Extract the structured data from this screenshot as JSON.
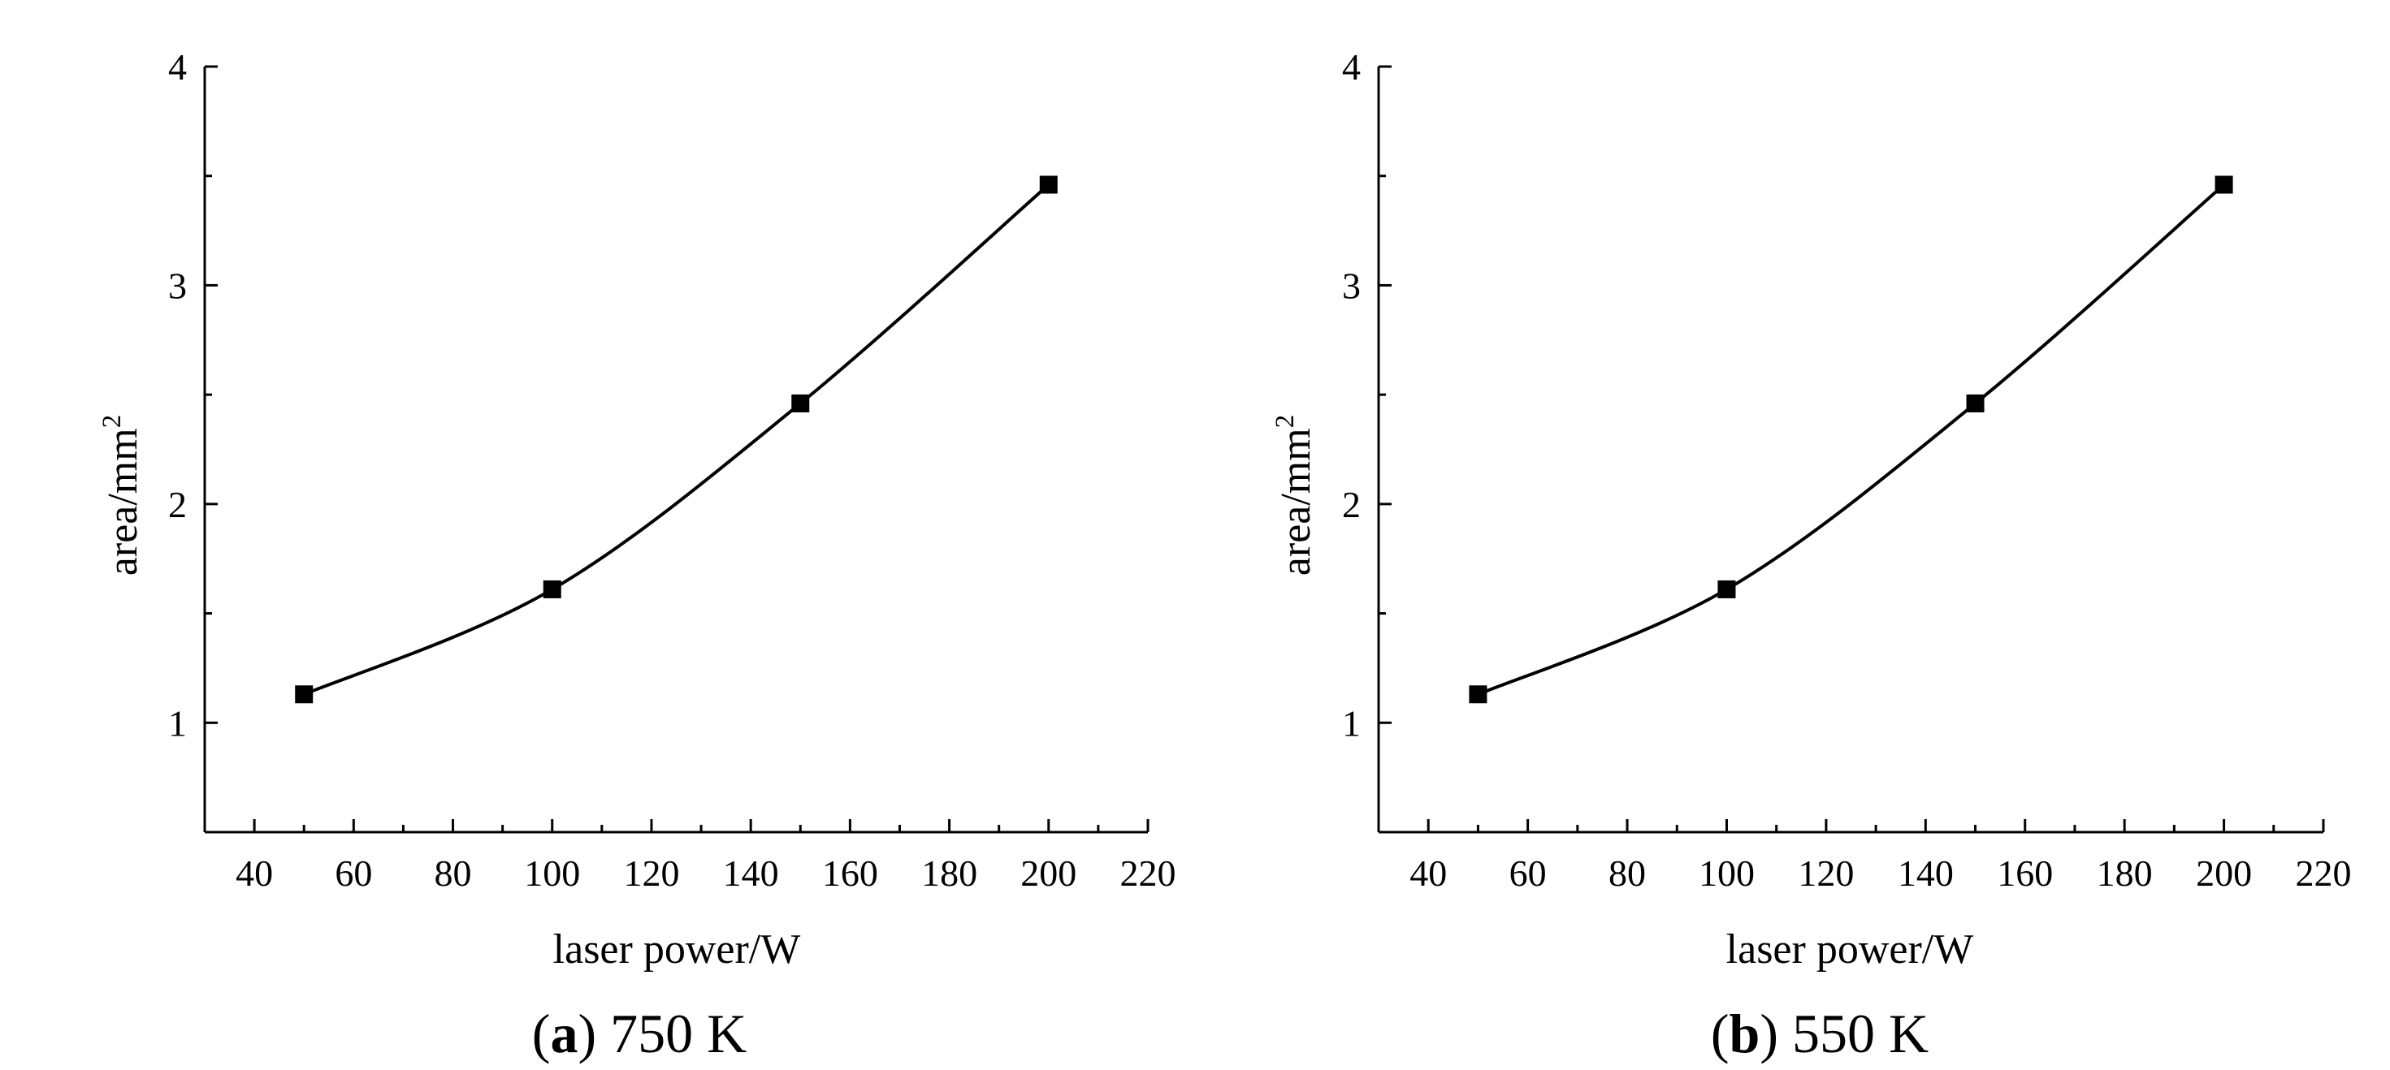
{
  "chart_data": [
    {
      "type": "line",
      "panel_letter": "a",
      "caption_rest": " 750 K",
      "xlabel": "laser power/W",
      "ylabel_base": "area/mm",
      "ylabel_sup": "2",
      "xlim": [
        30,
        220
      ],
      "ylim": [
        0.5,
        4
      ],
      "xticks": [
        40,
        60,
        80,
        100,
        120,
        140,
        160,
        180,
        200,
        220
      ],
      "xminor": [
        50,
        70,
        90,
        110,
        130,
        150,
        170,
        190,
        210
      ],
      "yticks": [
        1,
        2,
        3,
        4
      ],
      "yminor": [
        1.5,
        2.5,
        3.5
      ],
      "series": [
        {
          "name": "area",
          "x": [
            50,
            100,
            150,
            200
          ],
          "y": [
            1.13,
            1.61,
            2.46,
            3.46
          ],
          "marker": "square",
          "color": "#000000"
        }
      ]
    },
    {
      "type": "line",
      "panel_letter": "b",
      "caption_rest": " 550 K",
      "xlabel": "laser power/W",
      "ylabel_base": "area/mm",
      "ylabel_sup": "2",
      "xlim": [
        30,
        220
      ],
      "ylim": [
        0.5,
        4
      ],
      "xticks": [
        40,
        60,
        80,
        100,
        120,
        140,
        160,
        180,
        200,
        220
      ],
      "xminor": [
        50,
        70,
        90,
        110,
        130,
        150,
        170,
        190,
        210
      ],
      "yticks": [
        1,
        2,
        3,
        4
      ],
      "yminor": [
        1.5,
        2.5,
        3.5
      ],
      "series": [
        {
          "name": "area",
          "x": [
            50,
            100,
            150,
            200
          ],
          "y": [
            1.13,
            1.61,
            2.46,
            3.46
          ],
          "marker": "square",
          "color": "#000000"
        }
      ]
    }
  ]
}
